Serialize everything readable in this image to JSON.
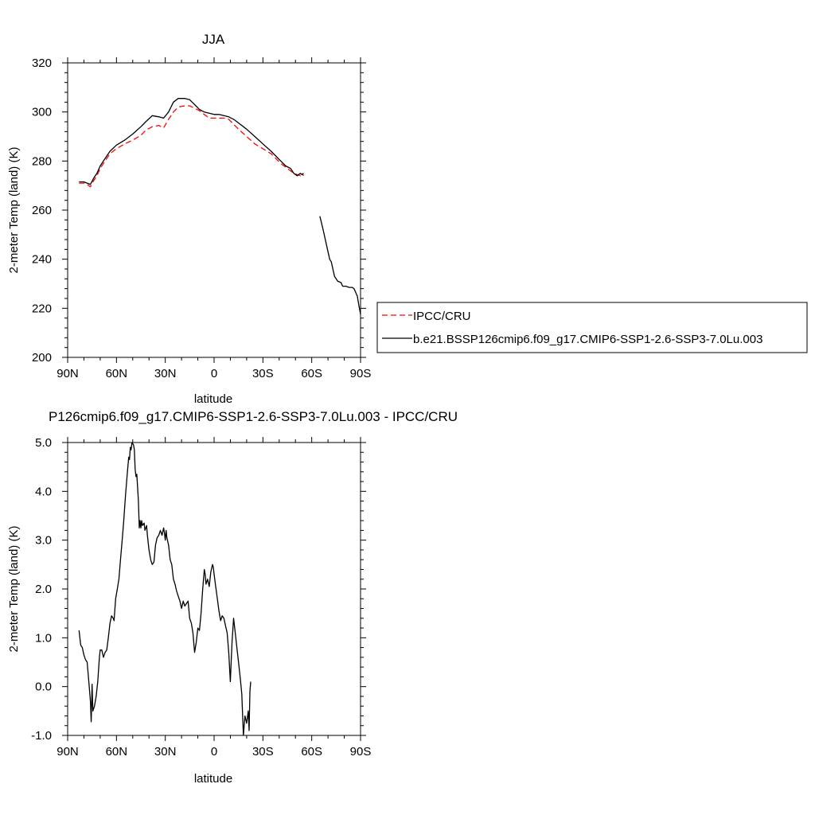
{
  "chart_data": [
    {
      "type": "line",
      "title": "JJA",
      "xlabel": "latitude",
      "ylabel": "2-meter Temp (land) (K)",
      "xlim": [
        90,
        -90
      ],
      "ylim": [
        200,
        320
      ],
      "x_ticks": [
        90,
        60,
        30,
        0,
        -30,
        -60,
        -90
      ],
      "x_tick_labels": [
        "90N",
        "60N",
        "30N",
        "0",
        "30S",
        "60S",
        "90S"
      ],
      "y_ticks": [
        200,
        220,
        240,
        260,
        280,
        300,
        320
      ],
      "y_tick_labels": [
        "200",
        "220",
        "240",
        "260",
        "280",
        "300",
        "320"
      ],
      "legend_position": "right",
      "series": [
        {
          "name": "IPCC/CRU",
          "color": "#ff0000",
          "dash": "dashed",
          "segments": [
            [
              [
                83,
                271
              ],
              [
                80,
                271
              ],
              [
                78,
                270.5
              ],
              [
                76,
                269.5
              ],
              [
                74,
                272
              ],
              [
                72,
                274
              ],
              [
                70,
                277
              ],
              [
                67,
                280
              ],
              [
                64,
                283
              ],
              [
                60,
                285
              ],
              [
                55,
                287
              ],
              [
                50,
                288.5
              ],
              [
                45,
                290.5
              ],
              [
                42,
                292.5
              ],
              [
                38,
                294
              ],
              [
                34,
                294.5
              ],
              [
                31,
                293.5
              ],
              [
                28,
                297
              ],
              [
                25,
                300
              ],
              [
                22,
                302
              ],
              [
                18,
                302.5
              ],
              [
                15,
                302.5
              ],
              [
                12,
                301.5
              ],
              [
                9,
                300.5
              ],
              [
                6,
                299
              ],
              [
                3,
                297.5
              ],
              [
                0,
                297.5
              ],
              [
                -3,
                297.5
              ],
              [
                -6,
                297.5
              ],
              [
                -9,
                297
              ],
              [
                -12,
                295
              ],
              [
                -15,
                293
              ],
              [
                -20,
                290
              ],
              [
                -25,
                287
              ],
              [
                -30,
                285
              ],
              [
                -35,
                283
              ],
              [
                -38,
                281
              ],
              [
                -41,
                279
              ],
              [
                -44,
                277.5
              ],
              [
                -47,
                276
              ],
              [
                -49,
                275
              ],
              [
                -51,
                274.5
              ],
              [
                -53,
                274
              ],
              [
                -54,
                275
              ],
              [
                -55,
                274
              ]
            ]
          ]
        },
        {
          "name": "b.e21.BSSP126cmip6.f09_g17.CMIP6-SSP1-2.6-SSP3-7.0Lu.003",
          "color": "#000000",
          "dash": "solid",
          "segments": [
            [
              [
                83,
                271.5
              ],
              [
                80,
                271.5
              ],
              [
                78,
                271
              ],
              [
                76,
                270.5
              ],
              [
                74,
                273
              ],
              [
                72,
                275
              ],
              [
                70,
                278
              ],
              [
                67,
                281
              ],
              [
                64,
                284
              ],
              [
                60,
                286.5
              ],
              [
                55,
                288.5
              ],
              [
                50,
                291
              ],
              [
                45,
                294
              ],
              [
                42,
                296
              ],
              [
                38,
                298.5
              ],
              [
                34,
                298
              ],
              [
                31,
                297.5
              ],
              [
                28,
                300
              ],
              [
                25,
                304
              ],
              [
                22,
                305.5
              ],
              [
                18,
                305.5
              ],
              [
                15,
                305
              ],
              [
                12,
                303
              ],
              [
                9,
                301
              ],
              [
                6,
                300
              ],
              [
                3,
                299.5
              ],
              [
                0,
                299
              ],
              [
                -3,
                299
              ],
              [
                -6,
                298.5
              ],
              [
                -9,
                298
              ],
              [
                -12,
                297
              ],
              [
                -15,
                295.5
              ],
              [
                -20,
                293
              ],
              [
                -25,
                290
              ],
              [
                -30,
                287
              ],
              [
                -35,
                284
              ],
              [
                -38,
                282
              ],
              [
                -41,
                280
              ],
              [
                -44,
                278
              ],
              [
                -47,
                277
              ],
              [
                -49,
                275
              ],
              [
                -51,
                274
              ],
              [
                -53,
                275
              ],
              [
                -54,
                274.5
              ],
              [
                -55,
                275
              ]
            ],
            [
              [
                -65,
                257.5
              ],
              [
                -67,
                252
              ],
              [
                -69,
                246
              ],
              [
                -71,
                240
              ],
              [
                -72,
                239
              ],
              [
                -74,
                233
              ],
              [
                -76,
                231
              ],
              [
                -78,
                230.5
              ],
              [
                -79,
                229
              ],
              [
                -81,
                229
              ],
              [
                -83,
                228.5
              ],
              [
                -85,
                228.5
              ],
              [
                -86,
                228
              ],
              [
                -88,
                225
              ],
              [
                -89,
                221
              ],
              [
                -90,
                217.5
              ]
            ]
          ]
        }
      ]
    },
    {
      "type": "line",
      "title": "P126cmip6.f09_g17.CMIP6-SSP1-2.6-SSP3-7.0Lu.003 - IPCC/CRU",
      "xlabel": "latitude",
      "ylabel": "2-meter Temp (land) (K)",
      "xlim": [
        90,
        -90
      ],
      "ylim": [
        -1.0,
        5.0
      ],
      "x_ticks": [
        90,
        60,
        30,
        0,
        -30,
        -60,
        -90
      ],
      "x_tick_labels": [
        "90N",
        "60N",
        "30N",
        "0",
        "30S",
        "60S",
        "90S"
      ],
      "y_ticks": [
        -1.0,
        0.0,
        1.0,
        2.0,
        3.0,
        4.0,
        5.0
      ],
      "y_tick_labels": [
        "-1.0",
        "0.0",
        "1.0",
        "2.0",
        "3.0",
        "4.0",
        "5.0"
      ],
      "series": [
        {
          "color": "#000000",
          "dash": "solid",
          "segments": [
            [
              [
                83,
                1.15
              ],
              [
                82,
                0.85
              ],
              [
                81,
                0.8
              ],
              [
                80,
                0.65
              ],
              [
                79,
                0.55
              ],
              [
                78,
                0.5
              ],
              [
                77,
                0.1
              ],
              [
                76,
                -0.3
              ],
              [
                75.5,
                -0.72
              ],
              [
                75,
                0.05
              ],
              [
                74.5,
                -0.5
              ],
              [
                73.5,
                -0.4
              ],
              [
                72.5,
                -0.2
              ],
              [
                71.5,
                0.1
              ],
              [
                70.5,
                0.6
              ],
              [
                70,
                0.75
              ],
              [
                69,
                0.75
              ],
              [
                68,
                0.6
              ],
              [
                67,
                0.7
              ],
              [
                66,
                0.75
              ],
              [
                65,
                1.0
              ],
              [
                64,
                1.3
              ],
              [
                63,
                1.45
              ],
              [
                62,
                1.4
              ],
              [
                61.5,
                1.35
              ],
              [
                60.5,
                1.8
              ],
              [
                59.5,
                2.0
              ],
              [
                58.5,
                2.2
              ],
              [
                57.5,
                2.6
              ],
              [
                56.5,
                3.0
              ],
              [
                55.5,
                3.4
              ],
              [
                54.5,
                3.9
              ],
              [
                53.5,
                4.3
              ],
              [
                52.5,
                4.7
              ],
              [
                52,
                4.65
              ],
              [
                51.5,
                4.9
              ],
              [
                51,
                4.85
              ],
              [
                50.5,
                5.0
              ],
              [
                49.5,
                4.95
              ],
              [
                49,
                4.85
              ],
              [
                48.5,
                4.45
              ],
              [
                48,
                4.3
              ],
              [
                47.5,
                4.35
              ],
              [
                46.5,
                3.8
              ],
              [
                46,
                3.25
              ],
              [
                45.5,
                3.4
              ],
              [
                45,
                3.25
              ],
              [
                44.5,
                3.4
              ],
              [
                44,
                3.3
              ],
              [
                43,
                3.35
              ],
              [
                42.5,
                3.2
              ],
              [
                41.5,
                3.3
              ],
              [
                41,
                3.1
              ],
              [
                40,
                2.8
              ],
              [
                39,
                2.6
              ],
              [
                38,
                2.5
              ],
              [
                37,
                2.55
              ],
              [
                36,
                2.9
              ],
              [
                35,
                3.05
              ],
              [
                34,
                3.1
              ],
              [
                33,
                3.2
              ],
              [
                32,
                3.1
              ],
              [
                31,
                3.25
              ],
              [
                30.5,
                3.15
              ],
              [
                30,
                3.0
              ],
              [
                29.5,
                3.2
              ],
              [
                29,
                3.05
              ],
              [
                28,
                2.9
              ],
              [
                27,
                2.6
              ],
              [
                26,
                2.5
              ],
              [
                25,
                2.2
              ],
              [
                24,
                2.1
              ],
              [
                23,
                1.95
              ],
              [
                22,
                1.85
              ],
              [
                21,
                1.75
              ],
              [
                20,
                1.6
              ],
              [
                19,
                1.75
              ],
              [
                18,
                1.65
              ],
              [
                17,
                1.7
              ],
              [
                16,
                1.75
              ],
              [
                15,
                1.4
              ],
              [
                14,
                1.3
              ],
              [
                13,
                1.1
              ],
              [
                12,
                0.7
              ],
              [
                11,
                0.9
              ],
              [
                10,
                1.2
              ],
              [
                9,
                1.15
              ],
              [
                8,
                1.5
              ],
              [
                7,
                2.0
              ],
              [
                6,
                2.4
              ],
              [
                5.5,
                2.3
              ],
              [
                5,
                2.1
              ],
              [
                4,
                2.2
              ],
              [
                3,
                2.05
              ],
              [
                2,
                2.35
              ],
              [
                1,
                2.5
              ],
              [
                0.5,
                2.45
              ],
              [
                0,
                2.3
              ],
              [
                -1,
                2.05
              ],
              [
                -2,
                1.8
              ],
              [
                -3,
                1.55
              ],
              [
                -4,
                1.35
              ],
              [
                -5,
                1.45
              ],
              [
                -6,
                1.4
              ],
              [
                -7,
                1.25
              ],
              [
                -8,
                1.1
              ],
              [
                -9,
                0.7
              ],
              [
                -10,
                0.1
              ],
              [
                -11,
                0.9
              ],
              [
                -12,
                1.4
              ],
              [
                -13,
                1.1
              ],
              [
                -14,
                0.8
              ],
              [
                -15,
                0.5
              ],
              [
                -16,
                0.2
              ],
              [
                -17,
                -0.15
              ],
              [
                -18,
                -1.0
              ],
              [
                -19,
                -0.6
              ],
              [
                -20,
                -0.75
              ],
              [
                -21,
                -0.5
              ],
              [
                -21.5,
                -0.9
              ],
              [
                -22,
                -0.1
              ],
              [
                -22.5,
                0.1
              ]
            ]
          ]
        }
      ]
    }
  ]
}
